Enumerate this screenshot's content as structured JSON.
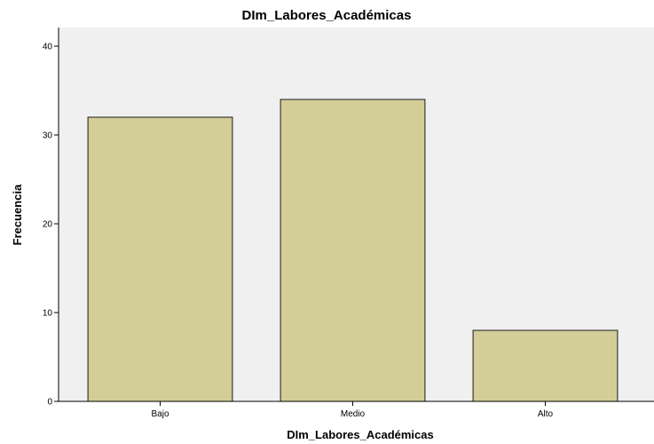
{
  "chart_data": {
    "type": "bar",
    "title": "DIm_Labores_Académicas",
    "xlabel": "DIm_Labores_Académicas",
    "ylabel": "Frecuencia",
    "categories": [
      "Bajo",
      "Medio",
      "Alto"
    ],
    "values": [
      32,
      34,
      8
    ],
    "ylim": [
      0,
      40
    ],
    "yticks": [
      0,
      10,
      20,
      30,
      40
    ],
    "grid": false,
    "colors": {
      "plot_background": "#f0f0f0",
      "bar_fill": "#d3ce97",
      "bar_stroke": "#1a1a1a",
      "axis": "#000000"
    }
  }
}
